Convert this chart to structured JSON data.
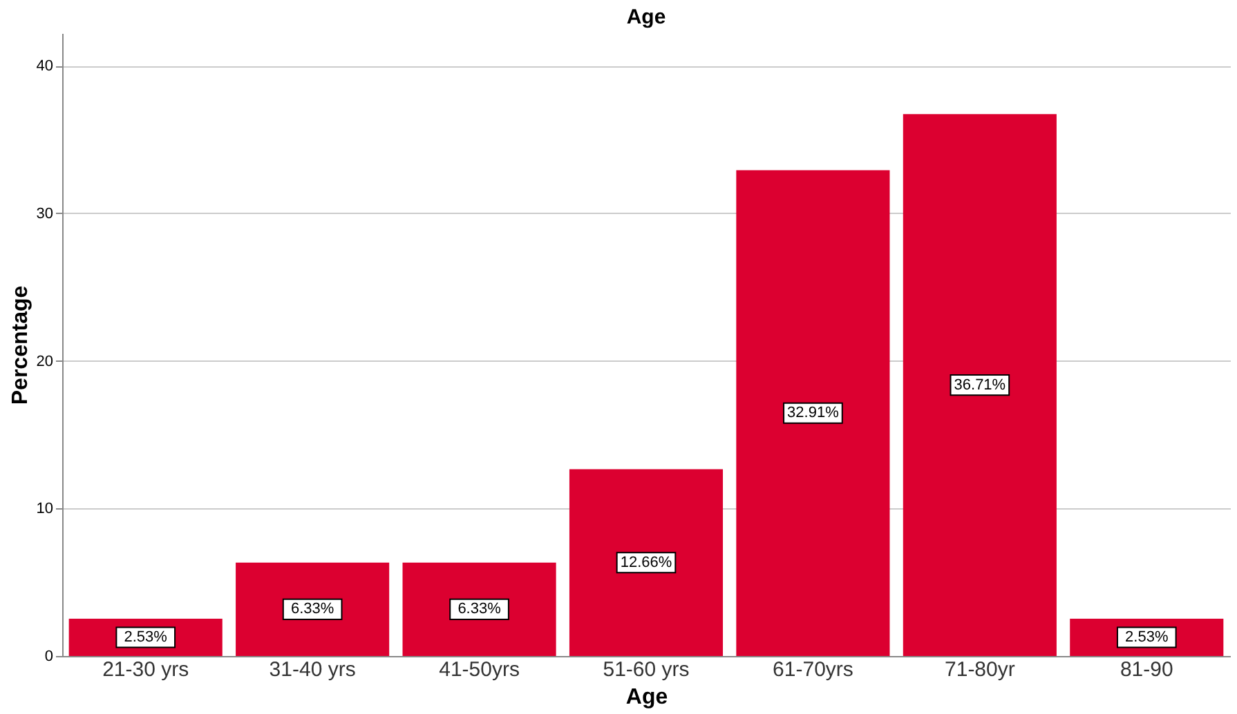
{
  "chart_data": {
    "type": "bar",
    "title": "Age",
    "xlabel": "Age",
    "ylabel": "Percentage",
    "categories": [
      "21-30 yrs",
      "31-40 yrs",
      "41-50yrs",
      "51-60 yrs",
      "61-70yrs",
      "71-80yr",
      "81-90"
    ],
    "values": [
      2.53,
      6.33,
      6.33,
      12.66,
      32.91,
      36.71,
      2.53
    ],
    "value_labels": [
      "2.53%",
      "6.33%",
      "6.33%",
      "12.66%",
      "32.91%",
      "36.71%",
      "2.53%"
    ],
    "color": "#dc0030",
    "ylim": [
      0,
      42.2
    ],
    "yticks": [
      0,
      10,
      20,
      30,
      40
    ],
    "grid": "y"
  }
}
